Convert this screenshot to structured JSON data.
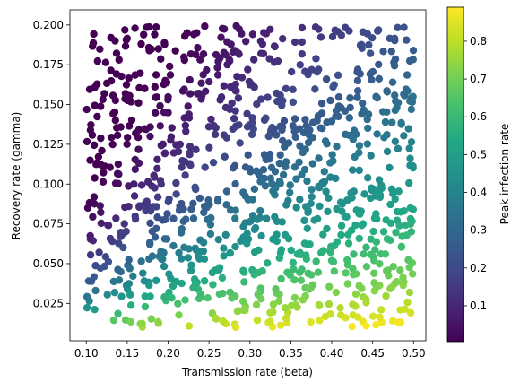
{
  "chart_data": {
    "type": "scatter",
    "xlabel": "Transmission rate (beta)",
    "ylabel": "Recovery rate (gamma)",
    "colorbar_label": "Peak infection rate",
    "xlim": [
      0.08,
      0.515
    ],
    "ylim": [
      0.0015,
      0.2095
    ],
    "xticks": [
      "0.10",
      "0.15",
      "0.20",
      "0.25",
      "0.30",
      "0.35",
      "0.40",
      "0.45",
      "0.50"
    ],
    "yticks": [
      "0.025",
      "0.050",
      "0.075",
      "0.100",
      "0.125",
      "0.150",
      "0.175",
      "0.200"
    ],
    "colorbar_range": [
      0.005,
      0.89
    ],
    "colorbar_ticks": [
      "0.1",
      "0.2",
      "0.3",
      "0.4",
      "0.5",
      "0.6",
      "0.7",
      "0.8"
    ],
    "colormap": "viridis",
    "color_meaning": "peak infection rate = 1 - (gamma/beta)(1 + ln(beta/gamma)), peaks near 0.89 at high beta / low gamma",
    "num_points": 1000,
    "x_range_sampled": [
      0.1,
      0.5
    ],
    "y_range_sampled": [
      0.01,
      0.2
    ]
  }
}
